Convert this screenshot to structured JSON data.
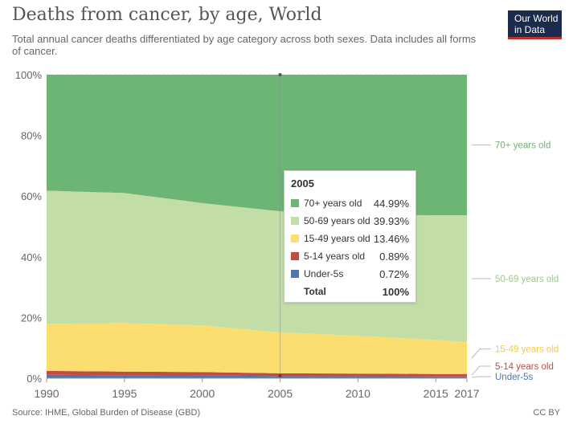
{
  "header": {
    "title": "Deaths from cancer, by age, World",
    "subtitle": "Total annual cancer deaths differentiated by age category across both sexes. Data includes all forms of cancer."
  },
  "logo": {
    "line1": "Our World",
    "line2": "in Data"
  },
  "footer": {
    "source": "Source: IHME, Global Burden of Disease (GBD)",
    "license": "CC BY"
  },
  "colors": {
    "70+ years old": "#6db575",
    "50-69 years old": "#c2dea6",
    "15-49 years old": "#fcdd70",
    "5-14 years old": "#c44b41",
    "Under-5s": "#4e77ad"
  },
  "chart_data": {
    "type": "area",
    "stacked": "percent",
    "x": [
      1990,
      1995,
      2000,
      2005,
      2010,
      2015,
      2017
    ],
    "x_ticks": [
      "1990",
      "1995",
      "2000",
      "2005",
      "2010",
      "2015",
      "2017"
    ],
    "y_ticks": [
      "0%",
      "20%",
      "40%",
      "60%",
      "80%",
      "100%"
    ],
    "ylim": [
      0,
      100
    ],
    "series": [
      {
        "name": "Under-5s",
        "values": [
          1.1,
          1.0,
          0.9,
          0.72,
          0.7,
          0.6,
          0.6
        ]
      },
      {
        "name": "5-14 years old",
        "values": [
          1.3,
          1.2,
          1.1,
          0.89,
          0.8,
          0.8,
          0.8
        ]
      },
      {
        "name": "15-49 years old",
        "values": [
          15.5,
          16.0,
          15.4,
          13.46,
          12.5,
          11.2,
          10.5
        ]
      },
      {
        "name": "50-69 years old",
        "values": [
          43.9,
          42.8,
          40.3,
          39.93,
          39.8,
          41.1,
          41.8
        ]
      },
      {
        "name": "70+ years old",
        "values": [
          38.2,
          39.0,
          42.3,
          44.99,
          46.2,
          46.3,
          46.3
        ]
      }
    ],
    "legend_placement": "right"
  },
  "tooltip": {
    "year": "2005",
    "rows": [
      {
        "label": "70+ years old",
        "value": "44.99%"
      },
      {
        "label": "50-69 years old",
        "value": "39.93%"
      },
      {
        "label": "15-49 years old",
        "value": "13.46%"
      },
      {
        "label": "5-14 years old",
        "value": "0.89%"
      },
      {
        "label": "Under-5s",
        "value": "0.72%"
      }
    ],
    "total_label": "Total",
    "total_value": "100%"
  }
}
